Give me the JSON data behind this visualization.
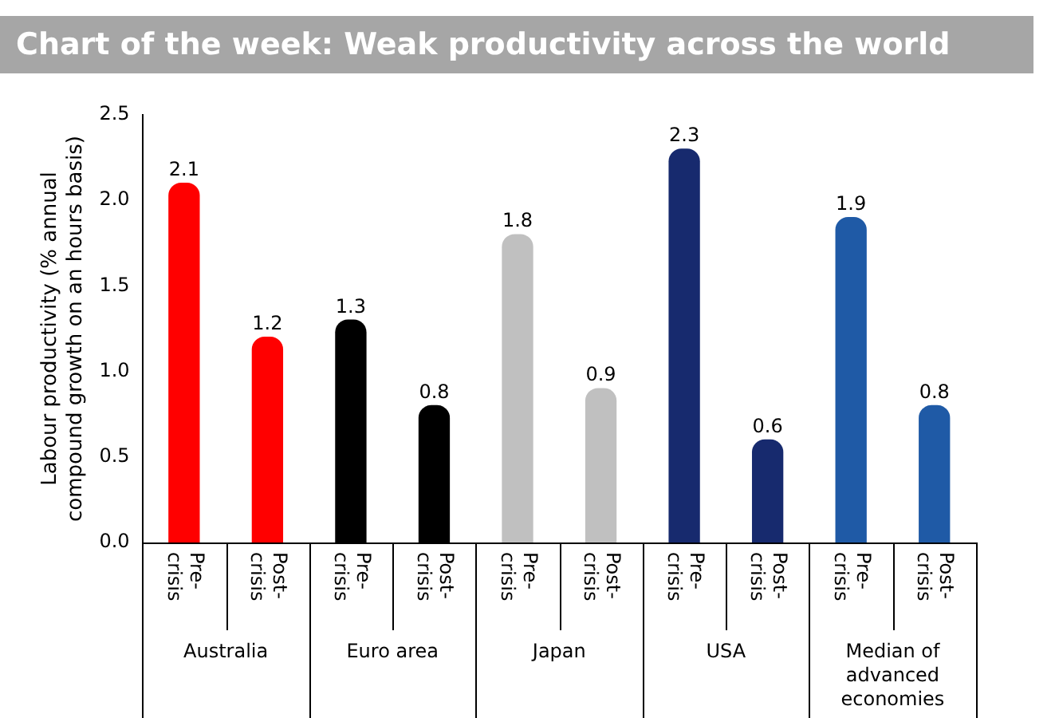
{
  "chart_data": {
    "type": "bar",
    "title": "Chart of the week: Weak productivity across the world",
    "ylabel": "Labour productivity (% annual compound growth on an hours basis)",
    "categories": [
      "Pre-crisis",
      "Post-crisis",
      "Pre-crisis",
      "Post-crisis",
      "Pre-crisis",
      "Post-crisis",
      "Pre-crisis",
      "Post-crisis",
      "Pre-crisis",
      "Post-crisis"
    ],
    "values": [
      2.1,
      1.2,
      1.3,
      0.8,
      1.8,
      0.9,
      2.3,
      0.6,
      1.9,
      0.8
    ],
    "colors": [
      "#ff0000",
      "#ff0000",
      "#000000",
      "#000000",
      "#c0c0c0",
      "#c0c0c0",
      "#172a6e",
      "#172a6e",
      "#1f5aa6",
      "#1f5aa6"
    ],
    "annotations": [
      "Australia",
      "Euro area",
      "Japan",
      "USA",
      "Median of advanced economies"
    ],
    "ylim": [
      0,
      2.5
    ],
    "yticks": [
      {
        "value": 0,
        "label": "0.0"
      },
      {
        "value": 0.5,
        "label": "0.5"
      },
      {
        "value": 1,
        "label": "1.0"
      },
      {
        "value": 1.5,
        "label": "1.5"
      },
      {
        "value": 2,
        "label": "2.0"
      },
      {
        "value": 2.5,
        "label": "2.5"
      }
    ],
    "data_labels": true,
    "grid": false,
    "legend": false
  }
}
